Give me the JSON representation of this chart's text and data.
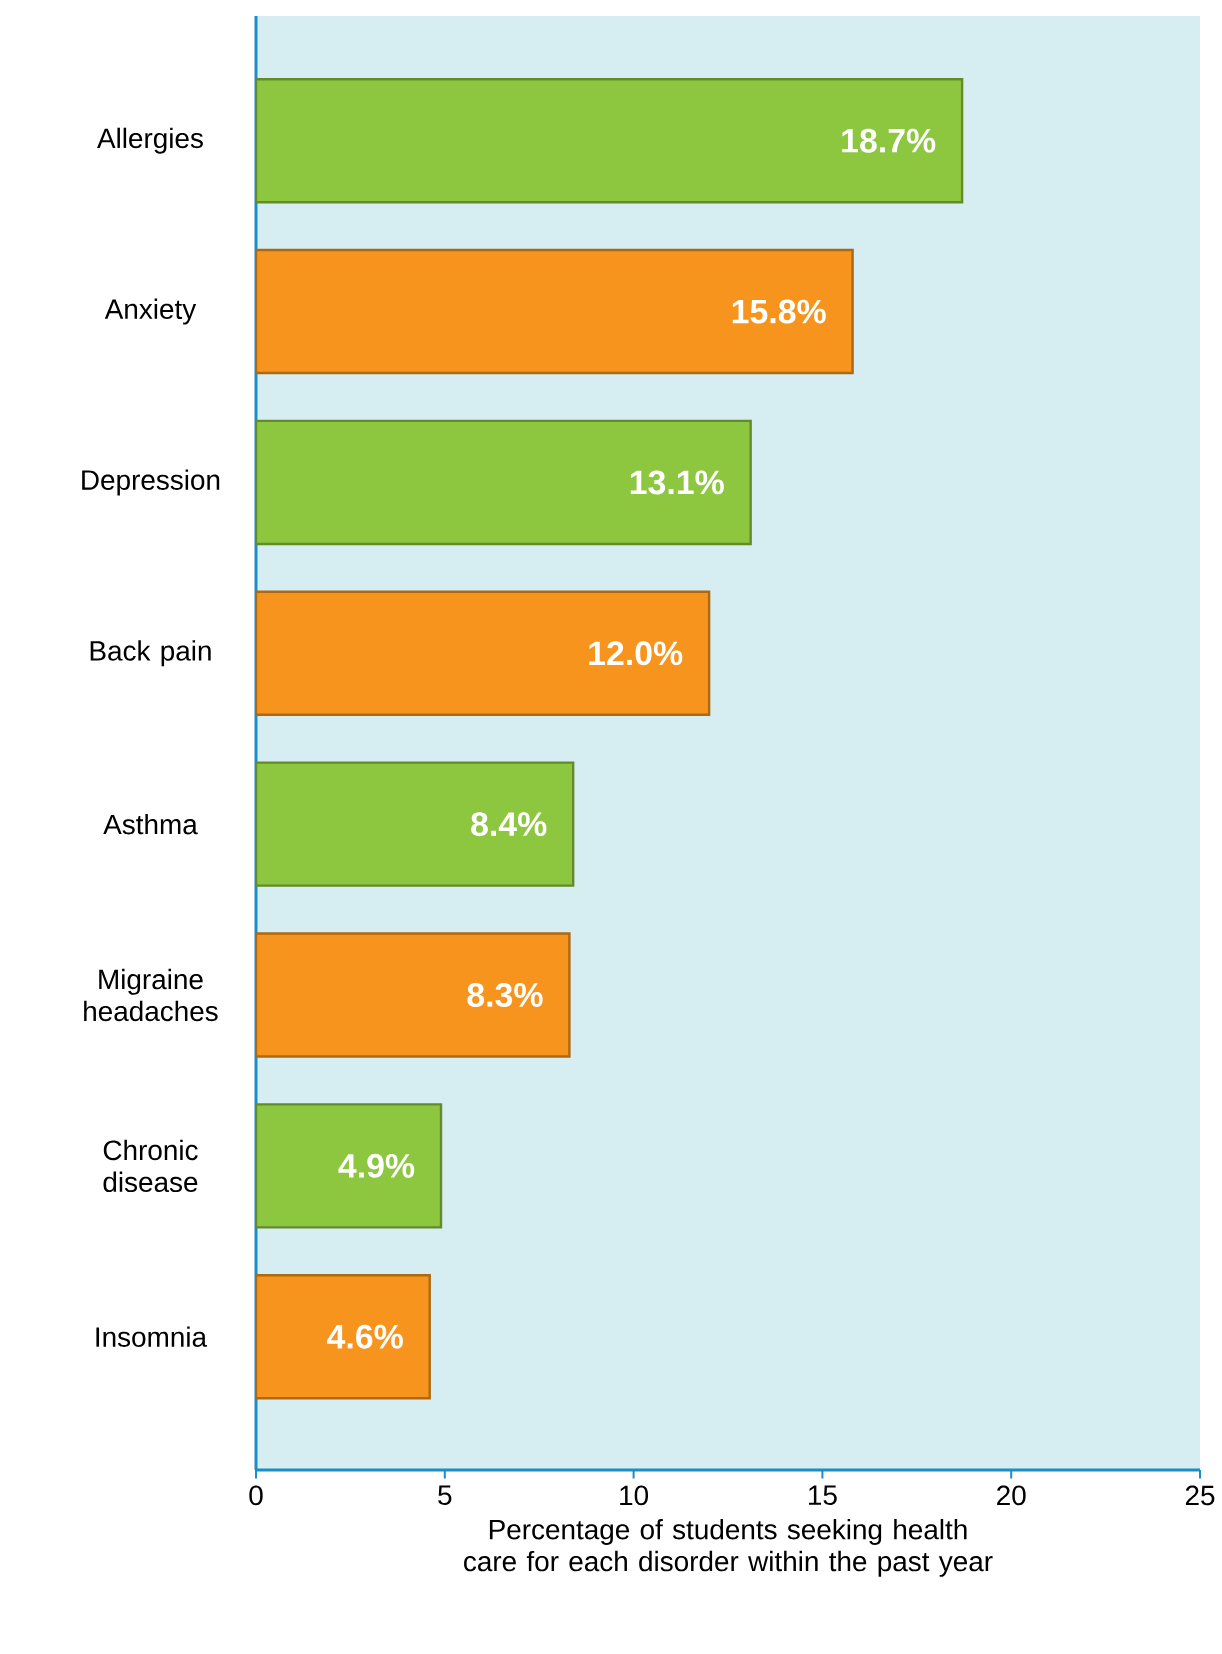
{
  "chart_data": {
    "type": "bar",
    "orientation": "horizontal",
    "categories": [
      "Allergies",
      "Anxiety",
      "Depression",
      "Back pain",
      "Asthma",
      "Migraine headaches",
      "Chronic disease",
      "Insomnia"
    ],
    "values": [
      18.7,
      15.8,
      13.1,
      12.0,
      8.4,
      8.3,
      4.9,
      4.6
    ],
    "colors": [
      "#8dc63f",
      "#f7941d",
      "#8dc63f",
      "#f7941d",
      "#8dc63f",
      "#f7941d",
      "#8dc63f",
      "#f7941d"
    ],
    "value_labels": [
      "18.7%",
      "15.8%",
      "13.1%",
      "12.0%",
      "8.4%",
      "8.3%",
      "4.9%",
      "4.6%"
    ],
    "xlim": [
      0,
      25
    ],
    "xticks": [
      0,
      5,
      10,
      15,
      20,
      25
    ],
    "xlabel": "Percentage of students seeking health care for each disorder within the past year",
    "grid": false
  }
}
